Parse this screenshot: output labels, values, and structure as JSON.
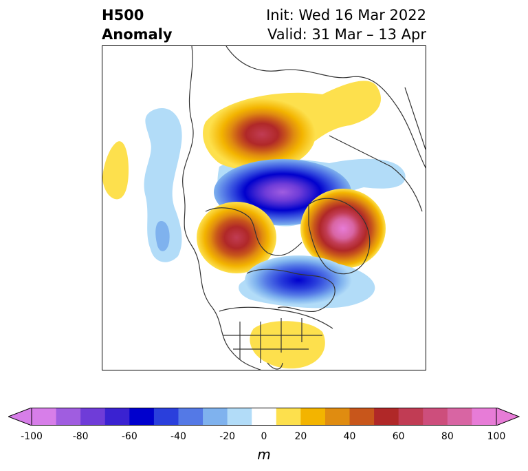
{
  "title": {
    "line1": "H500",
    "line2": "Anomaly"
  },
  "subtitle": {
    "init": "Init: Wed 16 Mar 2022",
    "valid": "Valid: 31 Mar – 13 Apr"
  },
  "colorbar": {
    "unit": "m",
    "ticks": [
      "-100",
      "-80",
      "-60",
      "-40",
      "-20",
      "0",
      "20",
      "40",
      "60",
      "80",
      "100"
    ],
    "tick_values": [
      -100,
      -80,
      -60,
      -40,
      -20,
      0,
      20,
      40,
      60,
      80,
      100
    ],
    "levels": [
      -100,
      -90,
      -80,
      -70,
      -60,
      -50,
      -40,
      -30,
      -20,
      -10,
      10,
      20,
      30,
      40,
      50,
      60,
      70,
      80,
      90,
      100
    ],
    "colors": [
      "#d77ee9",
      "#a05de0",
      "#6f3cd8",
      "#3a22d1",
      "#0000cd",
      "#2a3fdc",
      "#5479e6",
      "#7fb2ee",
      "#b2dcf8",
      "#ffffff",
      "#fde04d",
      "#f3b400",
      "#e08c10",
      "#c8561b",
      "#b02828",
      "#c13c54",
      "#cd4e7c",
      "#d865a3",
      "#e77cd7"
    ],
    "extend": "both"
  },
  "map": {
    "projection": "polar stereographic, North America / Arctic",
    "variable": "500 hPa geopotential height anomaly",
    "anomaly_centers": [
      {
        "region": "northern Siberia / Kara Sea",
        "sign": "positive",
        "peak_m": 70
      },
      {
        "region": "Arctic Ocean / Beaufort",
        "sign": "negative",
        "peak_m": -90
      },
      {
        "region": "Alaska",
        "sign": "positive",
        "peak_m": 60
      },
      {
        "region": "Greenland",
        "sign": "positive",
        "peak_m": 80
      },
      {
        "region": "eastern Canada / Hudson Bay",
        "sign": "negative",
        "peak_m": -60
      },
      {
        "region": "southeastern United States",
        "sign": "positive",
        "peak_m": 15
      },
      {
        "region": "North Pacific",
        "sign": "positive",
        "peak_m": 15
      },
      {
        "region": "North Pacific",
        "sign": "negative",
        "peak_m": -25
      }
    ]
  }
}
